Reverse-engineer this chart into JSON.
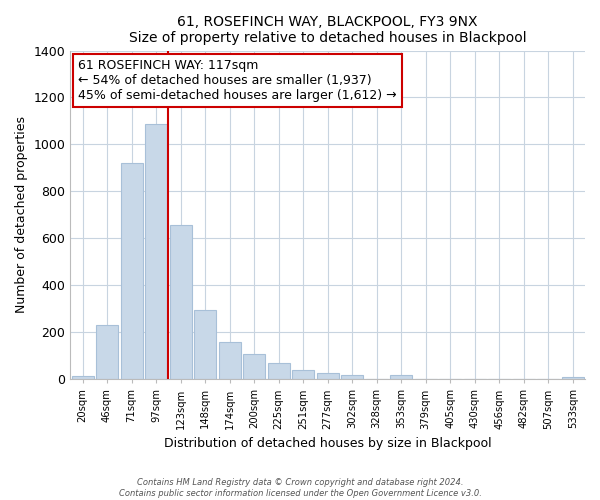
{
  "title": "61, ROSEFINCH WAY, BLACKPOOL, FY3 9NX",
  "subtitle": "Size of property relative to detached houses in Blackpool",
  "xlabel": "Distribution of detached houses by size in Blackpool",
  "ylabel": "Number of detached properties",
  "bar_labels": [
    "20sqm",
    "46sqm",
    "71sqm",
    "97sqm",
    "123sqm",
    "148sqm",
    "174sqm",
    "200sqm",
    "225sqm",
    "251sqm",
    "277sqm",
    "302sqm",
    "328sqm",
    "353sqm",
    "379sqm",
    "405sqm",
    "430sqm",
    "456sqm",
    "482sqm",
    "507sqm",
    "533sqm"
  ],
  "bar_values": [
    15,
    230,
    920,
    1085,
    655,
    295,
    158,
    108,
    68,
    40,
    25,
    20,
    0,
    18,
    0,
    0,
    0,
    0,
    0,
    0,
    10
  ],
  "bar_color": "#c8d8e8",
  "bar_edge_color": "#a8c0d8",
  "vline_color": "#cc0000",
  "annotation_title": "61 ROSEFINCH WAY: 117sqm",
  "annotation_line1": "← 54% of detached houses are smaller (1,937)",
  "annotation_line2": "45% of semi-detached houses are larger (1,612) →",
  "annotation_box_color": "#ffffff",
  "annotation_box_edge": "#cc0000",
  "ylim": [
    0,
    1400
  ],
  "yticks": [
    0,
    200,
    400,
    600,
    800,
    1000,
    1200,
    1400
  ],
  "footer_line1": "Contains HM Land Registry data © Crown copyright and database right 2024.",
  "footer_line2": "Contains public sector information licensed under the Open Government Licence v3.0.",
  "bg_color": "#ffffff",
  "grid_color": "#c8d4e0"
}
